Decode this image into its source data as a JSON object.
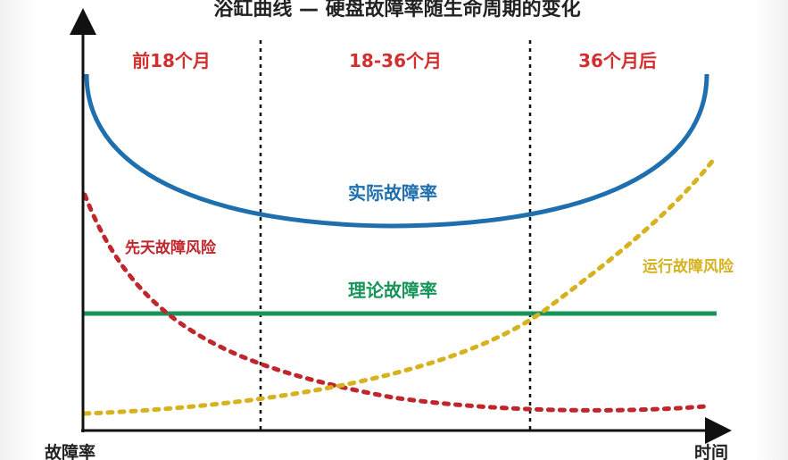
{
  "title": "浴缸曲线 — 硬盘故障率随生命周期的变化",
  "y_axis_label": "故障率",
  "x_axis_label": "时间",
  "phases": [
    "前18个月",
    "18-36个月",
    "36个月后"
  ],
  "curves": {
    "actual": {
      "label": "实际故障率",
      "color": "#1f6fae"
    },
    "theoretical": {
      "label": "理论故障率",
      "color": "#17945a"
    },
    "infant": {
      "label": "先天故障风险",
      "color": "#c0272d"
    },
    "wearout": {
      "label": "运行故障风险",
      "color": "#d6b21f"
    }
  },
  "colors": {
    "phase_text": "#d32f2f",
    "axis": "#111111",
    "divider": "#111111"
  }
}
